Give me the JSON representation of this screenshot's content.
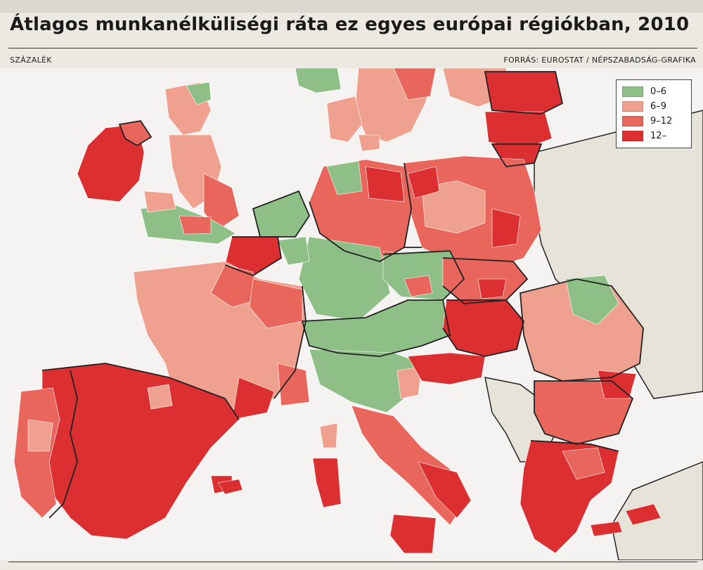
{
  "title": "Átlagos munkanélküliségi ráta ez egyes európai régiókban, 2010",
  "unit_label": "SZÁZALÉK",
  "source_label": "FORRÁS: EUROSTAT / NÉPSZABADSÁG-GRAFIKA",
  "legend": {
    "items": [
      {
        "label": "0–6",
        "color": "#8dbf86"
      },
      {
        "label": "6–9",
        "color": "#f0a08e"
      },
      {
        "label": "9–12",
        "color": "#e8665c"
      },
      {
        "label": "12–",
        "color": "#dc2f32"
      }
    ]
  },
  "colors": {
    "sea": "#f4f3f1",
    "non_eu_land": "#e6e3d9",
    "border": "#222222",
    "region_line": "#ffffff"
  }
}
